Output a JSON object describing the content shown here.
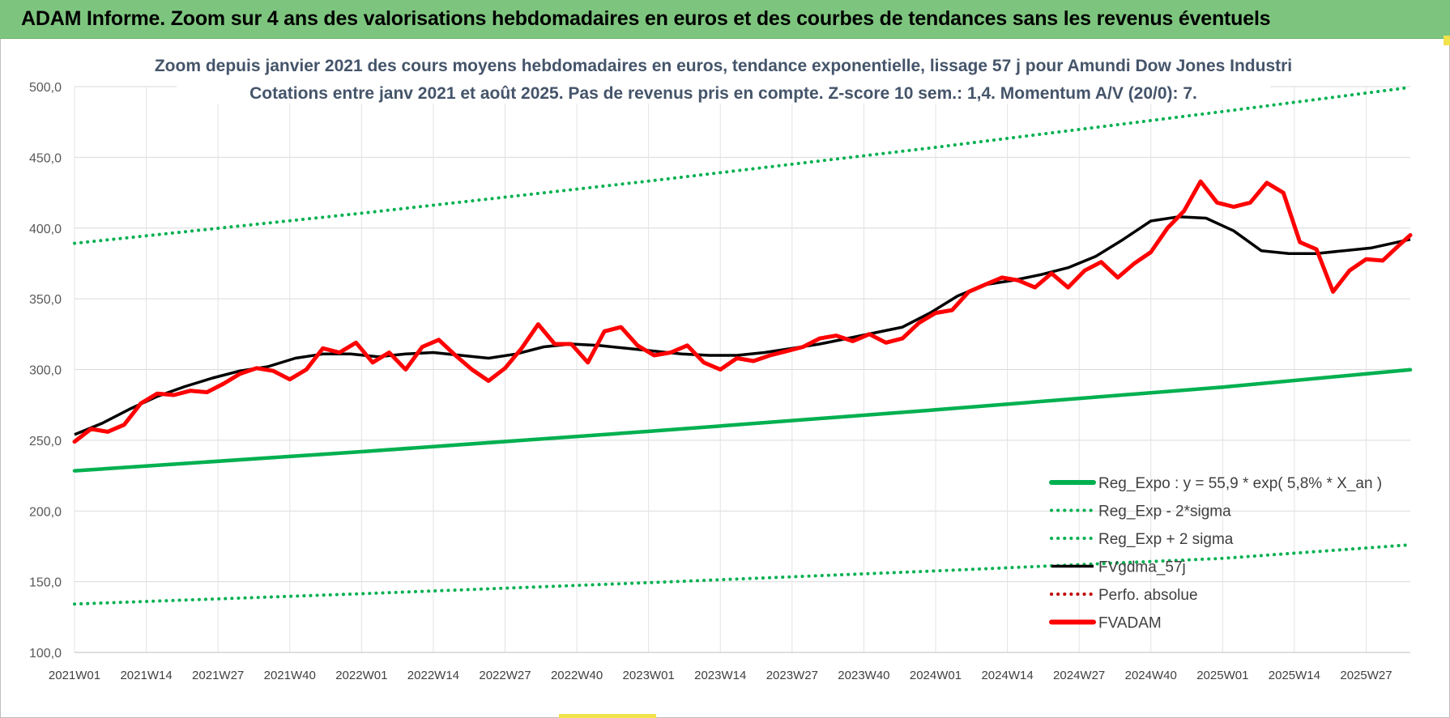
{
  "title": "ADAM Informe. Zoom sur 4 ans des valorisations hebdomadaires en euros et des courbes de tendances sans les revenus éventuels",
  "colors": {
    "title_bar": "#7dc57e",
    "reg_expo": "#00b050",
    "fvgdma": "#000000",
    "perfo": "#c00000",
    "fvadam": "#ff0000",
    "subtitle": "#44546a"
  },
  "chart_data": {
    "type": "line",
    "subtitle_lines": [
      "Zoom depuis janvier 2021 des cours moyens hebdomadaires en euros, tendance exponentielle, lissage 57 j pour Amundi Dow Jones Industri",
      "Cotations entre janv 2021 et août 2025. Pas de revenus pris en compte. Z-score 10 sem.: 1,4. Momentum A/V (20/0): 7."
    ],
    "x_ticks": [
      "2021W01",
      "2021W14",
      "2021W27",
      "2021W40",
      "2022W01",
      "2022W14",
      "2022W27",
      "2022W40",
      "2023W01",
      "2023W14",
      "2023W27",
      "2023W40",
      "2024W01",
      "2024W14",
      "2024W27",
      "2024W40",
      "2025W01",
      "2025W14",
      "2025W27"
    ],
    "x_unit": "weeks since 2021W01",
    "x_max": 242,
    "ylim": [
      100,
      500
    ],
    "y_ticks": [
      "100,0",
      "150,0",
      "200,0",
      "250,0",
      "300,0",
      "350,0",
      "400,0",
      "450,0",
      "500,0"
    ],
    "y_tick_values": [
      100,
      150,
      200,
      250,
      300,
      350,
      400,
      450,
      500
    ],
    "grid": true,
    "legend_position": "bottom-right",
    "legend": [
      {
        "key": "reg",
        "label": "Reg_Expo : y = 55,9 * exp( 5,8% *  X_an )",
        "style": "solid-thick",
        "color": "#00b050"
      },
      {
        "key": "low",
        "label": "Reg_Exp - 2*sigma",
        "style": "dotted",
        "color": "#00b050"
      },
      {
        "key": "high",
        "label": "Reg_Exp + 2 sigma",
        "style": "dotted",
        "color": "#00b050"
      },
      {
        "key": "fvg",
        "label": "FVgdma_57j",
        "style": "solid",
        "color": "#000000"
      },
      {
        "key": "perfo",
        "label": "Perfo. absolue",
        "style": "dotted",
        "color": "#c00000"
      },
      {
        "key": "fva",
        "label": "FVADAM",
        "style": "solid-thick",
        "color": "#ff0000"
      }
    ],
    "series": [
      {
        "key": "reg",
        "x": [
          0,
          52,
          104,
          156,
          208,
          242
        ],
        "y": [
          228.4,
          241.9,
          256.3,
          271.5,
          287.6,
          299.8
        ]
      },
      {
        "key": "low",
        "x": [
          0,
          52,
          104,
          156,
          208,
          242
        ],
        "y": [
          134.2,
          141.5,
          149.3,
          157.6,
          166.5,
          176.1
        ]
      },
      {
        "key": "high",
        "x": [
          0,
          52,
          104,
          156,
          208,
          242
        ],
        "y": [
          389.2,
          410.5,
          433.2,
          457.1,
          482.4,
          499.5
        ]
      },
      {
        "key": "fvg",
        "x": [
          0,
          5,
          10,
          15,
          20,
          25,
          30,
          35,
          40,
          45,
          50,
          55,
          60,
          65,
          70,
          75,
          80,
          85,
          90,
          95,
          100,
          105,
          110,
          115,
          120,
          125,
          130,
          135,
          140,
          145,
          150,
          155,
          160,
          165,
          170,
          175,
          180,
          185,
          190,
          195,
          200,
          205,
          210,
          215,
          220,
          225,
          230,
          235,
          242
        ],
        "y": [
          254,
          262,
          272,
          281,
          288,
          294,
          299,
          302,
          308,
          311,
          311,
          309,
          311,
          312,
          310,
          308,
          311,
          316,
          318,
          317,
          315,
          313,
          311,
          310,
          310,
          312,
          315,
          318,
          322,
          326,
          330,
          340,
          352,
          360,
          363,
          367,
          372,
          380,
          392,
          405,
          408,
          407,
          398,
          384,
          382,
          382,
          384,
          386,
          392
        ]
      },
      {
        "key": "fva",
        "x": [
          0,
          3,
          6,
          9,
          12,
          15,
          18,
          21,
          24,
          27,
          30,
          33,
          36,
          39,
          42,
          45,
          48,
          51,
          54,
          57,
          60,
          63,
          66,
          69,
          72,
          75,
          78,
          81,
          84,
          87,
          90,
          93,
          96,
          99,
          102,
          105,
          108,
          111,
          114,
          117,
          120,
          123,
          126,
          129,
          132,
          135,
          138,
          141,
          144,
          147,
          150,
          153,
          156,
          159,
          162,
          165,
          168,
          171,
          174,
          177,
          180,
          183,
          186,
          189,
          192,
          195,
          198,
          201,
          204,
          207,
          210,
          213,
          216,
          219,
          222,
          225,
          228,
          231,
          234,
          237,
          240,
          242
        ],
        "y": [
          249,
          258,
          256,
          261,
          276,
          283,
          282,
          285,
          284,
          290,
          297,
          301,
          299,
          293,
          300,
          315,
          312,
          319,
          305,
          312,
          300,
          316,
          321,
          310,
          300,
          292,
          301,
          315,
          332,
          318,
          318,
          305,
          327,
          330,
          317,
          310,
          312,
          317,
          305,
          300,
          308,
          306,
          310,
          313,
          316,
          322,
          324,
          320,
          325,
          319,
          322,
          333,
          340,
          342,
          355,
          360,
          365,
          363,
          358,
          368,
          358,
          370,
          376,
          365,
          375,
          383,
          400,
          412,
          433,
          418,
          415,
          418,
          432,
          425,
          390,
          385,
          355,
          370,
          378,
          377,
          388,
          395
        ]
      }
    ]
  }
}
